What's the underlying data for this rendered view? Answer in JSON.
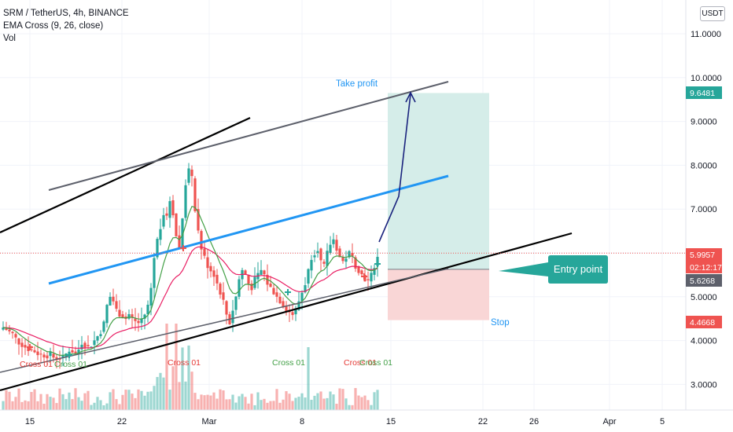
{
  "header": {
    "symbol_line": "SRM / TetherUS, 4h, BINANCE",
    "indicator_line": "EMA Cross (9, 26, close)",
    "volume_line": "Vol",
    "currency_button": "USDT"
  },
  "chart_data": {
    "type": "candlestick",
    "y_axis_ticks": [
      "11.0000",
      "10.0000",
      "9.0000",
      "8.0000",
      "7.0000",
      "6.0000",
      "5.0000",
      "4.0000",
      "3.0000"
    ],
    "y_range": [
      2.45,
      12.05
    ],
    "x_axis_ticks": [
      "15",
      "22",
      "Mar",
      "8",
      "15",
      "22",
      "26",
      "Apr",
      "5"
    ],
    "price_tags": [
      {
        "value": "9.6481",
        "color": "#26a69a"
      },
      {
        "value": "5.9957",
        "color": "#ef5350"
      },
      {
        "value": "02:12:17",
        "color": "#ef5350"
      },
      {
        "value": "5.6268",
        "color": "#5d606b"
      },
      {
        "value": "4.4668",
        "color": "#ef5350"
      }
    ],
    "position": {
      "entry": 5.6268,
      "take_profit": 9.6481,
      "stop": 4.4668
    },
    "annotations": {
      "take_profit": "Take profit",
      "stop": "Stop",
      "entry_point": "Entry point"
    },
    "cross_labels": [
      {
        "text": "Cross 01",
        "color": "#e53935"
      },
      {
        "text": "Cross 01",
        "color": "#43a047"
      },
      {
        "text": "Cross 01",
        "color": "#e53935"
      },
      {
        "text": "Cross 01",
        "color": "#43a047"
      },
      {
        "text": "Cross 01",
        "color": "#e53935"
      },
      {
        "text": "Cross 01",
        "color": "#43a047"
      }
    ],
    "price_path": [
      4.3,
      4.25,
      4.2,
      4.15,
      4.05,
      3.95,
      3.9,
      3.85,
      3.8,
      3.78,
      3.75,
      3.7,
      3.68,
      3.66,
      3.65,
      3.7,
      3.62,
      3.58,
      3.6,
      3.62,
      3.7,
      3.78,
      3.75,
      3.7,
      3.8,
      3.95,
      3.9,
      3.85,
      3.9,
      4.0,
      4.1,
      4.2,
      4.4,
      4.8,
      5.0,
      4.9,
      4.7,
      4.6,
      4.55,
      4.5,
      4.6,
      4.5,
      4.45,
      4.4,
      4.5,
      4.6,
      4.8,
      5.2,
      5.9,
      6.3,
      6.6,
      6.9,
      6.8,
      7.2,
      6.9,
      6.4,
      6.1,
      6.8,
      7.6,
      7.9,
      7.7,
      7.0,
      6.5,
      6.1,
      5.9,
      5.7,
      5.6,
      5.5,
      5.3,
      5.1,
      4.9,
      4.6,
      4.4,
      4.7,
      5.0,
      5.4,
      5.6,
      5.5,
      5.3,
      5.2,
      5.4,
      5.5,
      5.6,
      5.5,
      5.3,
      5.2,
      5.1,
      5.0,
      4.9,
      4.8,
      4.7,
      4.65,
      4.6,
      4.7,
      4.9,
      5.1,
      5.3,
      5.6,
      5.9,
      6.0,
      6.1,
      5.8,
      5.7,
      6.0,
      6.2,
      6.3,
      6.1,
      5.9,
      5.8,
      5.9,
      6.0,
      5.9,
      5.7,
      5.6,
      5.5,
      5.4,
      5.35,
      5.5,
      5.7,
      5.9
    ],
    "colors": {
      "up": "#26a69a",
      "down": "#ef5350",
      "ema_fast": "#43a047",
      "ema_slow": "#e91e63",
      "channel_mid": "#2196f3",
      "take_profit_zone": "#d5ede9",
      "stop_zone": "#f9d6d6",
      "entry_callout": "#26a69a"
    }
  }
}
